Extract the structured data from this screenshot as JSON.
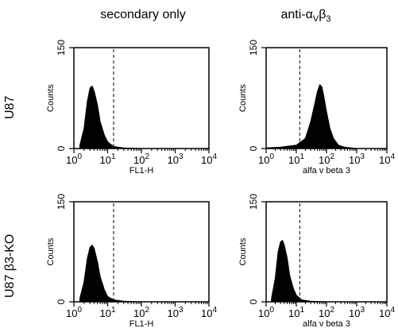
{
  "column_titles": [
    {
      "main": "secondary only",
      "sub": ""
    },
    {
      "main": "anti-α",
      "sub1": "V",
      "mid": "β",
      "sub2": "3"
    }
  ],
  "row_labels": [
    "U87",
    "U87 β3-KO"
  ],
  "chart_data": [
    {
      "type": "area",
      "row": "U87",
      "column": "secondary only",
      "xlabel": "FL1-H",
      "ylabel": "Counts",
      "x_scale": "log",
      "xlim": [
        1,
        10000
      ],
      "ylim": [
        0,
        150
      ],
      "y_ticks": [
        "0",
        "150"
      ],
      "x_ticks": [
        "10^0",
        "10^1",
        "10^2",
        "10^3",
        "10^4"
      ],
      "gate_x": 15,
      "histogram": {
        "x": [
          1.5,
          2,
          2.5,
          3,
          3.5,
          4,
          5,
          6,
          8,
          10,
          15,
          30,
          100,
          1000,
          10000
        ],
        "y": [
          5,
          30,
          70,
          90,
          93,
          85,
          65,
          40,
          20,
          10,
          3,
          1,
          0,
          0,
          0
        ]
      }
    },
    {
      "type": "area",
      "row": "U87",
      "column": "anti-αVβ3",
      "xlabel": "alfa v beta 3",
      "ylabel": "Counts",
      "x_scale": "log",
      "xlim": [
        1,
        10000
      ],
      "ylim": [
        0,
        150
      ],
      "y_ticks": [
        "0",
        "150"
      ],
      "x_ticks": [
        "10^0",
        "10^1",
        "10^2",
        "10^3",
        "10^4"
      ],
      "gate_x": 13,
      "histogram": {
        "x": [
          1,
          3,
          10,
          20,
          30,
          40,
          50,
          60,
          70,
          80,
          100,
          130,
          170,
          250,
          400,
          1000,
          10000
        ],
        "y": [
          1,
          2,
          5,
          15,
          40,
          65,
          85,
          95,
          92,
          80,
          55,
          30,
          15,
          5,
          2,
          0,
          0
        ]
      }
    },
    {
      "type": "area",
      "row": "U87 β3-KO",
      "column": "secondary only",
      "xlabel": "FL1-H",
      "ylabel": "Counts",
      "x_scale": "log",
      "xlim": [
        1,
        10000
      ],
      "ylim": [
        0,
        150
      ],
      "y_ticks": [
        "0",
        "150"
      ],
      "x_ticks": [
        "10^0",
        "10^1",
        "10^2",
        "10^3",
        "10^4"
      ],
      "gate_x": 15,
      "histogram": {
        "x": [
          1.5,
          2,
          2.5,
          3,
          3.5,
          4,
          5,
          6,
          8,
          10,
          15,
          30,
          100,
          1000,
          10000
        ],
        "y": [
          5,
          30,
          65,
          82,
          85,
          80,
          60,
          38,
          18,
          8,
          3,
          1,
          0,
          0,
          0
        ]
      }
    },
    {
      "type": "area",
      "row": "U87 β3-KO",
      "column": "anti-αVβ3",
      "xlabel": "alfa v beta 3",
      "ylabel": "Counts",
      "x_scale": "log",
      "xlim": [
        1,
        10000
      ],
      "ylim": [
        0,
        150
      ],
      "y_ticks": [
        "0",
        "150"
      ],
      "x_ticks": [
        "10^0",
        "10^1",
        "10^2",
        "10^3",
        "10^4"
      ],
      "gate_x": 13,
      "histogram": {
        "x": [
          1.5,
          2,
          2.5,
          3,
          3.5,
          4,
          5,
          6,
          8,
          10,
          15,
          30,
          100,
          1000,
          10000
        ],
        "y": [
          5,
          35,
          75,
          90,
          92,
          85,
          65,
          40,
          20,
          10,
          3,
          1,
          0,
          0,
          0
        ]
      }
    }
  ]
}
